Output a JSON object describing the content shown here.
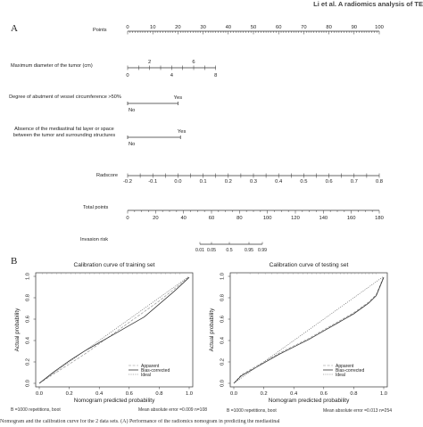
{
  "header": "Li et al. A radiomics analysis of TE",
  "panels": {
    "a": "A",
    "b": "B"
  },
  "nomogram": {
    "rows": [
      {
        "key": "points",
        "label": "Points"
      },
      {
        "key": "diameter",
        "label": "Maximum diameter of the tumor (cm)"
      },
      {
        "key": "vessel",
        "label": "Degree of abutment of vessel circumference >50%"
      },
      {
        "key": "fat",
        "label": "Absence of the mediastinal fat layer or space between the tumor and surrounding structures"
      },
      {
        "key": "radscore",
        "label": "Radscore"
      },
      {
        "key": "total",
        "label": "Total points"
      },
      {
        "key": "risk",
        "label": "Invasion risk"
      }
    ],
    "points_ticks": [
      "0",
      "10",
      "20",
      "30",
      "40",
      "50",
      "60",
      "70",
      "80",
      "90",
      "100"
    ],
    "diameter_ticks_below": [
      "0",
      "4",
      "8"
    ],
    "diameter_ticks_above": [
      "2",
      "6"
    ],
    "vessel_labels": {
      "no": "No",
      "yes": "Yes"
    },
    "fat_labels": {
      "no": "No",
      "yes": "Yes"
    },
    "radscore_ticks": [
      "-0.2",
      "-0.1",
      "0.0",
      "0.1",
      "0.2",
      "0.3",
      "0.4",
      "0.5",
      "0.6",
      "0.7",
      "0.8"
    ],
    "total_ticks": [
      "0",
      "20",
      "40",
      "60",
      "80",
      "100",
      "120",
      "140",
      "160",
      "180"
    ],
    "risk_ticks": [
      "0.01",
      "0.05",
      "0.5",
      "0.95",
      "0.99"
    ]
  },
  "chart_data": [
    {
      "type": "line",
      "title": "Calibration curve of training set",
      "xlabel": "Nomogram predicted probability",
      "ylabel": "Actual probability",
      "xlim": [
        0,
        1
      ],
      "ylim": [
        0,
        1
      ],
      "xticks": [
        "0.0",
        "0.2",
        "0.4",
        "0.6",
        "0.8",
        "1.0"
      ],
      "yticks": [
        "0.0",
        "0.2",
        "0.4",
        "0.6",
        "0.8",
        "1.0"
      ],
      "legend": [
        "Apparent",
        "Bias-corrected",
        "Ideal"
      ],
      "legend_position": "bottom-right",
      "series": [
        {
          "name": "Apparent",
          "x": [
            0.0,
            0.1,
            0.2,
            0.3,
            0.4,
            0.5,
            0.6,
            0.7,
            0.8,
            0.9,
            1.0
          ],
          "y": [
            0.0,
            0.09,
            0.18,
            0.27,
            0.37,
            0.47,
            0.57,
            0.67,
            0.77,
            0.88,
            1.0
          ]
        },
        {
          "name": "Bias-corrected",
          "x": [
            0.0,
            0.1,
            0.2,
            0.3,
            0.4,
            0.5,
            0.6,
            0.7,
            0.8,
            0.9,
            1.0
          ],
          "y": [
            0.0,
            0.11,
            0.21,
            0.3,
            0.38,
            0.46,
            0.54,
            0.62,
            0.74,
            0.86,
            0.99
          ]
        },
        {
          "name": "Ideal",
          "x": [
            0,
            1
          ],
          "y": [
            0,
            1
          ]
        }
      ],
      "footnote_left": "B =1000 repetitions, boot",
      "footnote_right": "Mean absolute error =0.009 n=108"
    },
    {
      "type": "line",
      "title": "Calibration curve of testing set",
      "xlabel": "Nomogram predicted probability",
      "ylabel": "Actual probability",
      "xlim": [
        0,
        1
      ],
      "ylim": [
        0,
        1
      ],
      "xticks": [
        "0.0",
        "0.2",
        "0.4",
        "0.6",
        "0.8",
        "1.0"
      ],
      "yticks": [
        "0.0",
        "0.2",
        "0.4",
        "0.6",
        "0.8",
        "1.0"
      ],
      "legend": [
        "Apparent",
        "Bias-corrected",
        "Ideal"
      ],
      "legend_position": "bottom-right",
      "series": [
        {
          "name": "Apparent",
          "x": [
            0.0,
            0.05,
            0.1,
            0.2,
            0.3,
            0.4,
            0.5,
            0.6,
            0.7,
            0.8,
            0.9,
            0.95,
            1.0
          ],
          "y": [
            0.0,
            0.08,
            0.12,
            0.2,
            0.28,
            0.35,
            0.42,
            0.5,
            0.58,
            0.66,
            0.76,
            0.83,
            1.0
          ]
        },
        {
          "name": "Bias-corrected",
          "x": [
            0.0,
            0.05,
            0.1,
            0.2,
            0.3,
            0.4,
            0.5,
            0.6,
            0.7,
            0.8,
            0.9,
            0.95,
            1.0
          ],
          "y": [
            0.0,
            0.07,
            0.11,
            0.19,
            0.27,
            0.34,
            0.41,
            0.49,
            0.57,
            0.65,
            0.75,
            0.82,
            0.99
          ]
        },
        {
          "name": "Ideal",
          "x": [
            0,
            1
          ],
          "y": [
            0,
            1
          ]
        }
      ],
      "footnote_left": "B =1000 repetitions, boot",
      "footnote_right": "Mean absolute error =0.013 n=254"
    }
  ],
  "caption": "Nomogram and the calibration curve for the 2 data sets. (A) Performance of the radiomics nomogram in predicting the mediastinal"
}
